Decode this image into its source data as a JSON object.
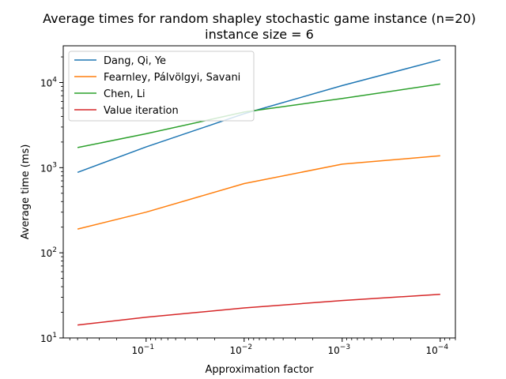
{
  "chart_data": {
    "type": "line",
    "title": "Average times for random shapley stochastic game instance (n=20)",
    "subtitle": "instance size = 6",
    "xlabel": "Approximation factor",
    "ylabel": "Average time (ms)",
    "x_scale": "log",
    "x_reversed": true,
    "y_scale": "log",
    "xlim": [
      0.7,
      7e-05
    ],
    "ylim": [
      10,
      27000
    ],
    "grid": false,
    "legend_position": "top-left",
    "x_ticks": [
      {
        "value": 0.1,
        "base": "10",
        "exp": "−1"
      },
      {
        "value": 0.01,
        "base": "10",
        "exp": "−2"
      },
      {
        "value": 0.001,
        "base": "10",
        "exp": "−3"
      },
      {
        "value": 0.0001,
        "base": "10",
        "exp": "−4"
      }
    ],
    "y_ticks": [
      {
        "value": 10,
        "base": "10",
        "exp": "1"
      },
      {
        "value": 100,
        "base": "10",
        "exp": "2"
      },
      {
        "value": 1000,
        "base": "10",
        "exp": "3"
      },
      {
        "value": 10000,
        "base": "10",
        "exp": "4"
      }
    ],
    "x": [
      0.5,
      0.1,
      0.01,
      0.001,
      0.0001
    ],
    "series": [
      {
        "name": "Dang, Qi, Ye",
        "color": "#1f77b4",
        "values": [
          880,
          1750,
          4300,
          9200,
          18500
        ]
      },
      {
        "name": "Fearnley, Pálvölgyi, Savani",
        "color": "#ff7f0e",
        "values": [
          190,
          300,
          650,
          1100,
          1380
        ]
      },
      {
        "name": "Chen, Li",
        "color": "#2ca02c",
        "values": [
          1720,
          2500,
          4500,
          6500,
          9600
        ]
      },
      {
        "name": "Value iteration",
        "color": "#d62728",
        "values": [
          14.2,
          17.5,
          22.5,
          27.5,
          32.5
        ]
      }
    ]
  }
}
